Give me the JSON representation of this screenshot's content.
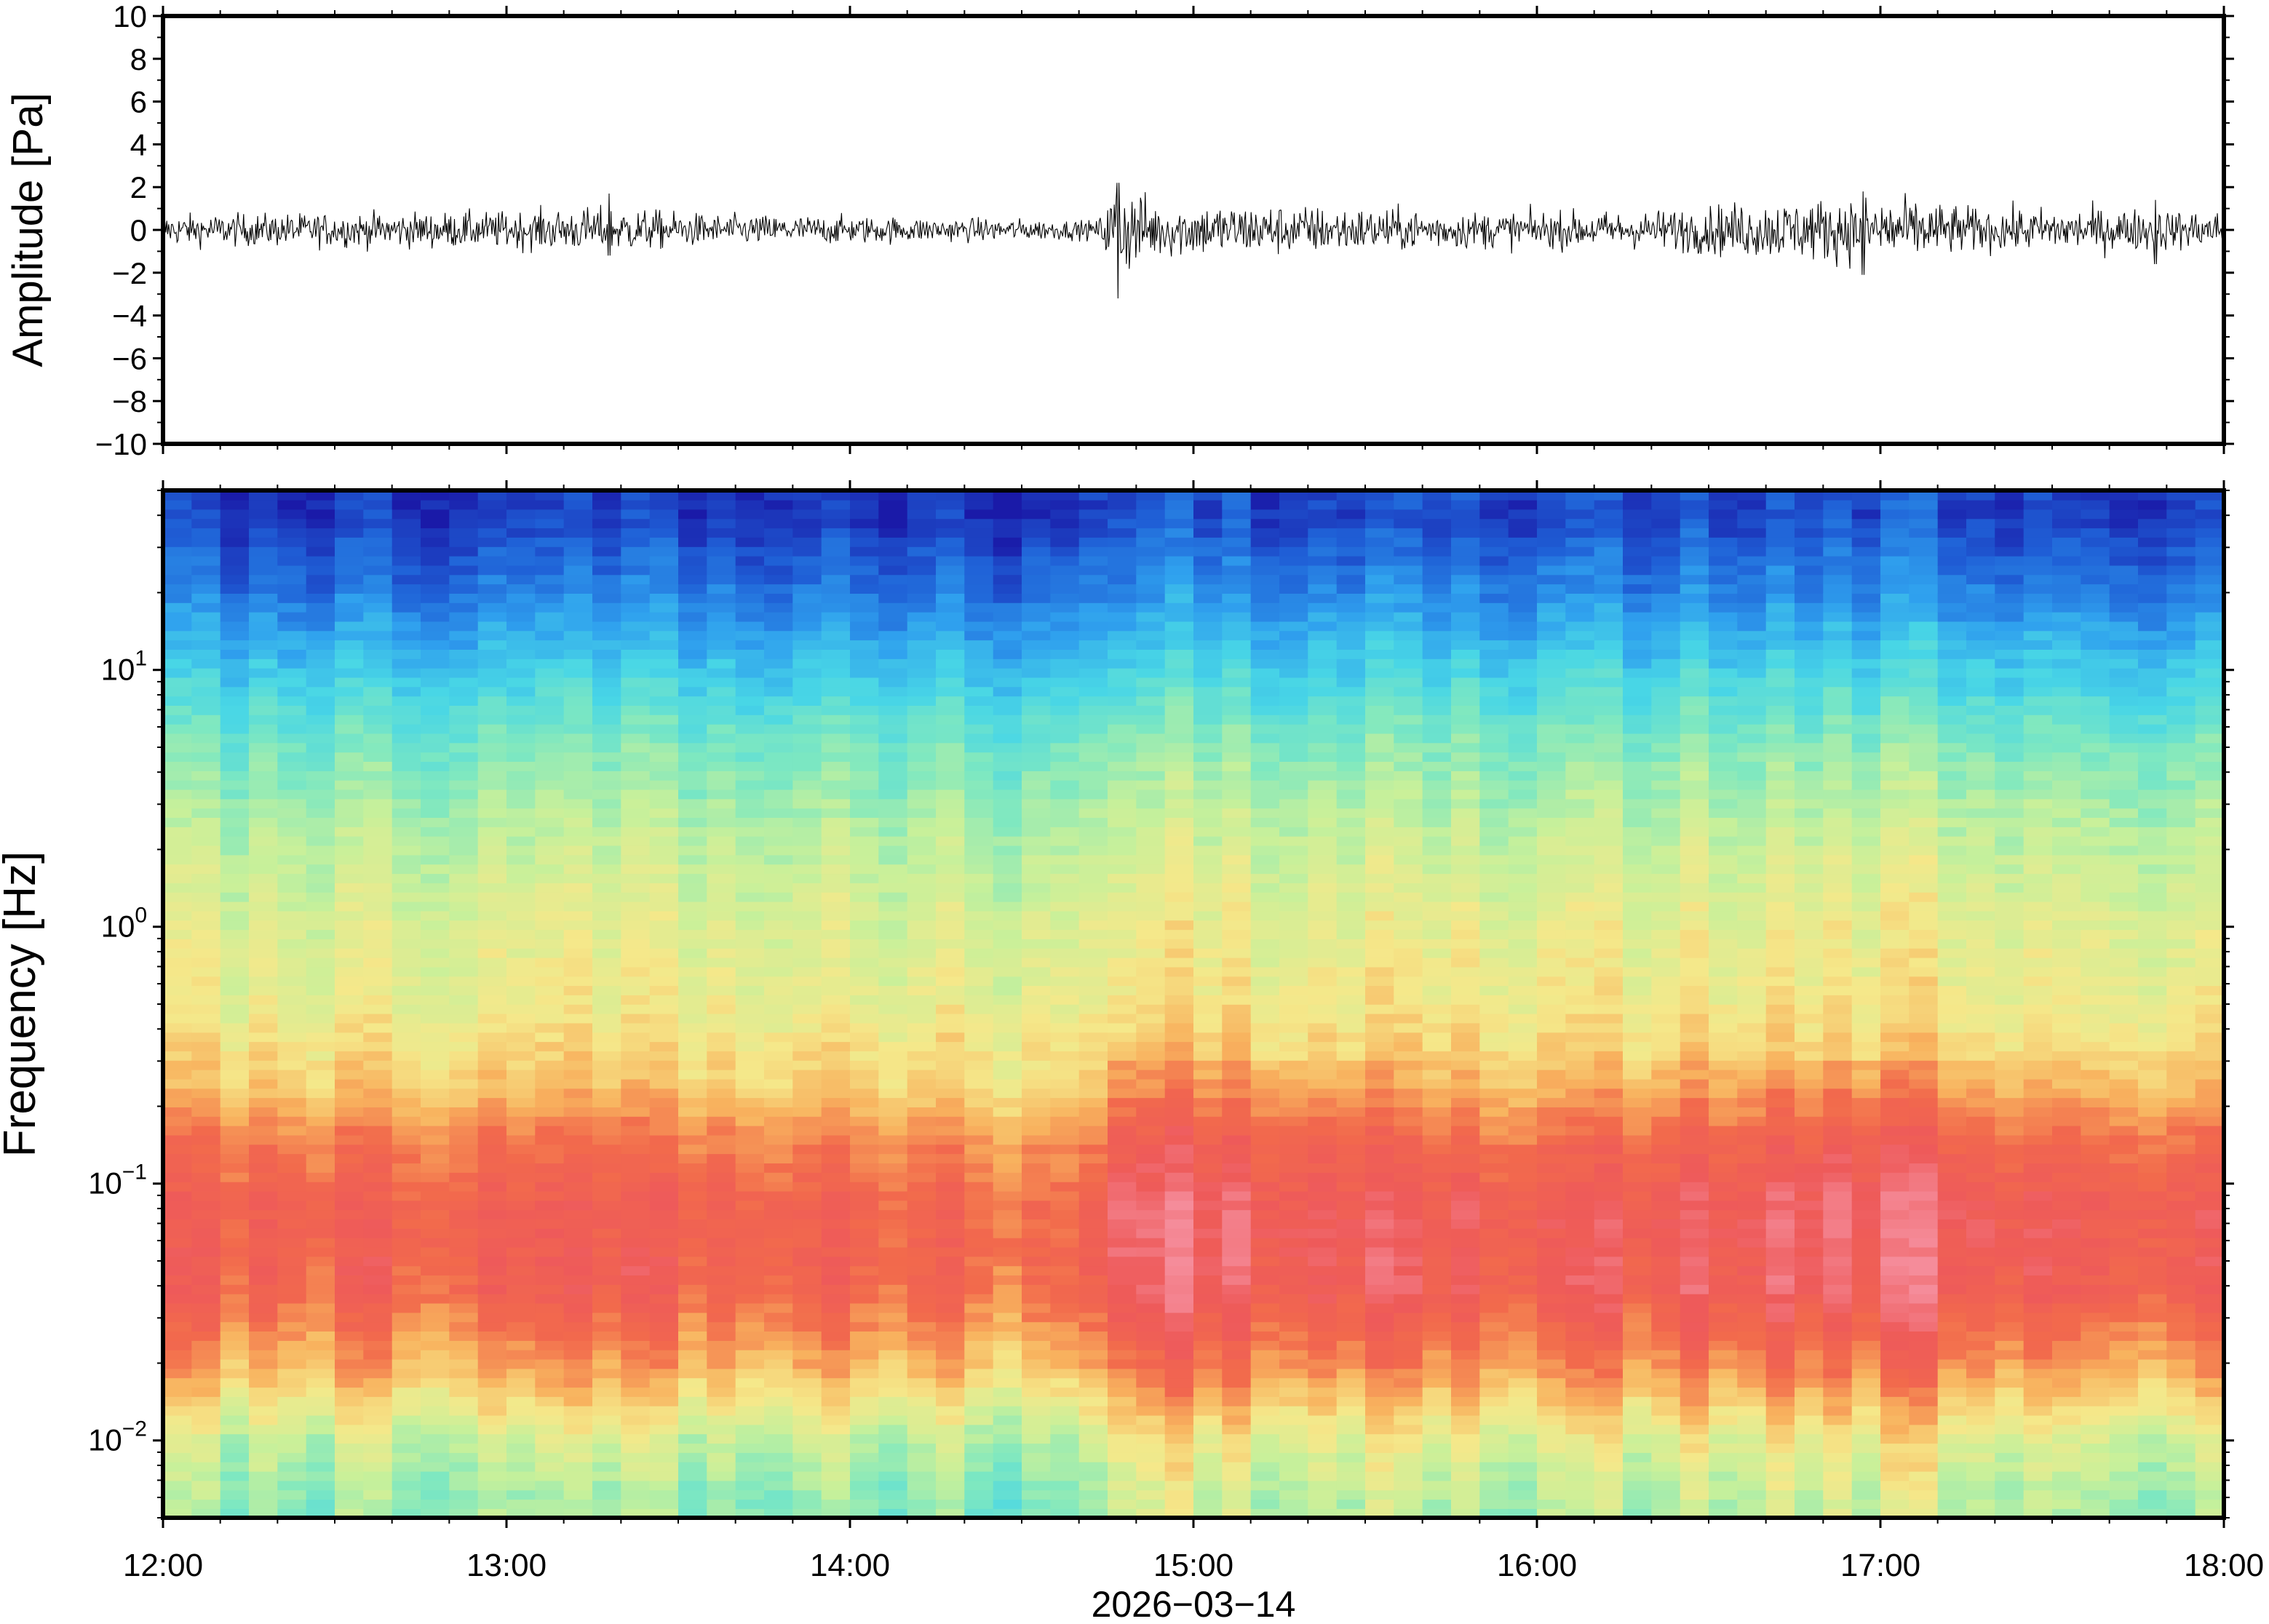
{
  "chart_data": [
    {
      "type": "line",
      "panel": "waveform",
      "ylabel": "Amplitude [Pa]",
      "ylim": [
        -10,
        10
      ],
      "yticks": [
        10,
        8,
        6,
        4,
        2,
        0,
        -2,
        -4,
        -6,
        -8,
        -10
      ],
      "ytick_labels": [
        "10",
        "8",
        "6",
        "4",
        "2",
        "0",
        "−2",
        "−4",
        "−6",
        "−8",
        "−10"
      ],
      "x_range_hours": [
        12,
        18
      ],
      "noise_envelope": [
        {
          "t": 12.0,
          "amp": 0.5
        },
        {
          "t": 12.5,
          "amp": 0.55
        },
        {
          "t": 13.0,
          "amp": 0.6
        },
        {
          "t": 13.3,
          "amp": 0.75
        },
        {
          "t": 13.6,
          "amp": 0.5
        },
        {
          "t": 14.0,
          "amp": 0.45
        },
        {
          "t": 14.5,
          "amp": 0.35
        },
        {
          "t": 14.72,
          "amp": 0.3
        },
        {
          "t": 14.78,
          "amp": 1.6
        },
        {
          "t": 14.9,
          "amp": 0.9
        },
        {
          "t": 15.3,
          "amp": 0.8
        },
        {
          "t": 15.8,
          "amp": 0.6
        },
        {
          "t": 16.3,
          "amp": 0.6
        },
        {
          "t": 16.6,
          "amp": 0.9
        },
        {
          "t": 17.0,
          "amp": 1.1
        },
        {
          "t": 17.3,
          "amp": 0.7
        },
        {
          "t": 17.7,
          "amp": 0.7
        },
        {
          "t": 18.0,
          "amp": 0.6
        }
      ],
      "notable_peaks": [
        {
          "t": 14.78,
          "max": 2.2,
          "min": -3.2
        },
        {
          "t": 13.3,
          "max": 1.7,
          "min": -1.2
        },
        {
          "t": 16.95,
          "max": 1.8,
          "min": -2.1
        },
        {
          "t": 17.8,
          "max": 1.4,
          "min": -1.6
        }
      ]
    },
    {
      "type": "heatmap",
      "panel": "spectrogram",
      "ylabel": "Frequency [Hz]",
      "yscale": "log",
      "ylim": [
        0.005,
        50
      ],
      "yticks": [
        0.01,
        0.1,
        1,
        10
      ],
      "ytick_labels": [
        {
          "base": "10",
          "exp": "−2"
        },
        {
          "base": "10",
          "exp": "−1"
        },
        {
          "base": "10",
          "exp": "0"
        },
        {
          "base": "10",
          "exp": "1"
        }
      ],
      "xlabel": "2026−03−14",
      "x_range_hours": [
        12,
        18
      ],
      "xticks": [
        12,
        13,
        14,
        15,
        16,
        17,
        18
      ],
      "xtick_labels": [
        "12:00",
        "13:00",
        "14:00",
        "15:00",
        "16:00",
        "17:00",
        "18:00"
      ],
      "colormap": [
        "#1a1aa8",
        "#1f5fd6",
        "#2fa0ee",
        "#48d6e6",
        "#7fe8c0",
        "#c8f09a",
        "#f5e88a",
        "#f8b25e",
        "#f26a4c",
        "#ee5a5a",
        "#f58c9a"
      ],
      "mean_spectrum_by_frequency": [
        {
          "freq": 40,
          "level": 0.05
        },
        {
          "freq": 20,
          "level": 0.15
        },
        {
          "freq": 10,
          "level": 0.28
        },
        {
          "freq": 5,
          "level": 0.4
        },
        {
          "freq": 2,
          "level": 0.5
        },
        {
          "freq": 1,
          "level": 0.55
        },
        {
          "freq": 0.5,
          "level": 0.58
        },
        {
          "freq": 0.25,
          "level": 0.66
        },
        {
          "freq": 0.15,
          "level": 0.78
        },
        {
          "freq": 0.08,
          "level": 0.86
        },
        {
          "freq": 0.04,
          "level": 0.85
        },
        {
          "freq": 0.02,
          "level": 0.72
        },
        {
          "freq": 0.01,
          "level": 0.52
        },
        {
          "freq": 0.006,
          "level": 0.45
        }
      ],
      "activity_by_time": [
        {
          "t": 12.0,
          "boost": 0.0
        },
        {
          "t": 13.0,
          "boost": 0.0
        },
        {
          "t": 14.0,
          "boost": -0.02
        },
        {
          "t": 14.7,
          "boost": -0.06
        },
        {
          "t": 14.75,
          "boost": 0.1
        },
        {
          "t": 15.2,
          "boost": 0.06
        },
        {
          "t": 16.0,
          "boost": 0.0
        },
        {
          "t": 16.6,
          "boost": 0.06
        },
        {
          "t": 17.0,
          "boost": 0.09
        },
        {
          "t": 17.5,
          "boost": 0.03
        },
        {
          "t": 18.0,
          "boost": 0.02
        }
      ]
    }
  ]
}
